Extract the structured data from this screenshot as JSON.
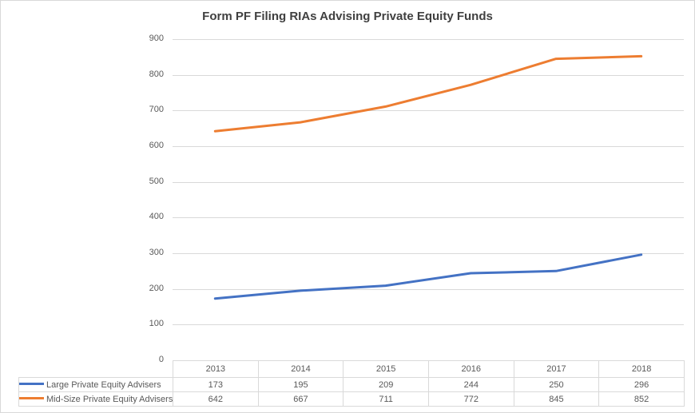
{
  "chart_data": {
    "type": "line",
    "title": "Form PF Filing RIAs Advising Private Equity Funds",
    "categories": [
      "2013",
      "2014",
      "2015",
      "2016",
      "2017",
      "2018"
    ],
    "series": [
      {
        "name": "Large Private Equity Advisers",
        "color": "#4472C4",
        "values": [
          173,
          195,
          209,
          244,
          250,
          296
        ]
      },
      {
        "name": "Mid-Size Private Equity Advisers",
        "color": "#ED7D31",
        "values": [
          642,
          667,
          711,
          772,
          845,
          852
        ]
      }
    ],
    "xlabel": "",
    "ylabel": "",
    "ylim": [
      0,
      900
    ],
    "ytick_step": 100,
    "ytick_labels": [
      "0",
      "100",
      "200",
      "300",
      "400",
      "500",
      "600",
      "700",
      "800",
      "900"
    ],
    "grid": true,
    "legend_position": "data-table-left",
    "line_width": 3
  },
  "colors": {
    "series_large": "#4472C4",
    "series_midsize": "#ED7D31",
    "gridline": "#D9D9D9",
    "axis_line": "#BFBFBF",
    "axis_text": "#595959",
    "title_text": "#404040",
    "table_border": "#D9D9D9",
    "frame_border": "#D9D9D9"
  }
}
